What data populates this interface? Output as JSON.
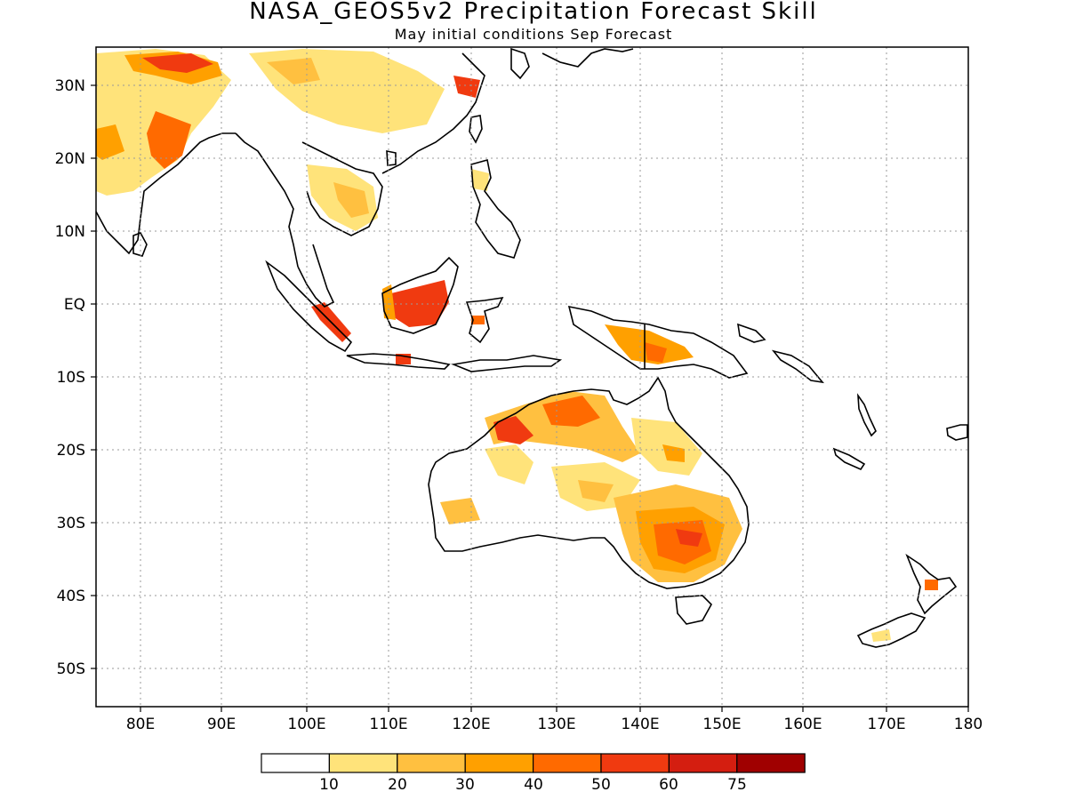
{
  "title": "NASA_GEOS5v2 Precipitation Forecast Skill",
  "subtitle": "May initial conditions  Sep Forecast",
  "lat_labels": [
    "30N",
    "20N",
    "10N",
    "EQ",
    "10S",
    "20S",
    "30S",
    "40S",
    "50S"
  ],
  "lon_labels": [
    "80E",
    "90E",
    "100E",
    "110E",
    "120E",
    "130E",
    "140E",
    "150E",
    "160E",
    "170E",
    "180"
  ],
  "colorbar": {
    "labels": [
      "10",
      "20",
      "30",
      "40",
      "50",
      "60",
      "75"
    ],
    "colors": [
      "#ffffff",
      "#ffe37a",
      "#ffc040",
      "#ffa000",
      "#ff6a00",
      "#f03a10",
      "#d41e10",
      "#a00000"
    ]
  },
  "colors": {
    "land_outline": "#000000",
    "grid": "#9a9a9a"
  }
}
